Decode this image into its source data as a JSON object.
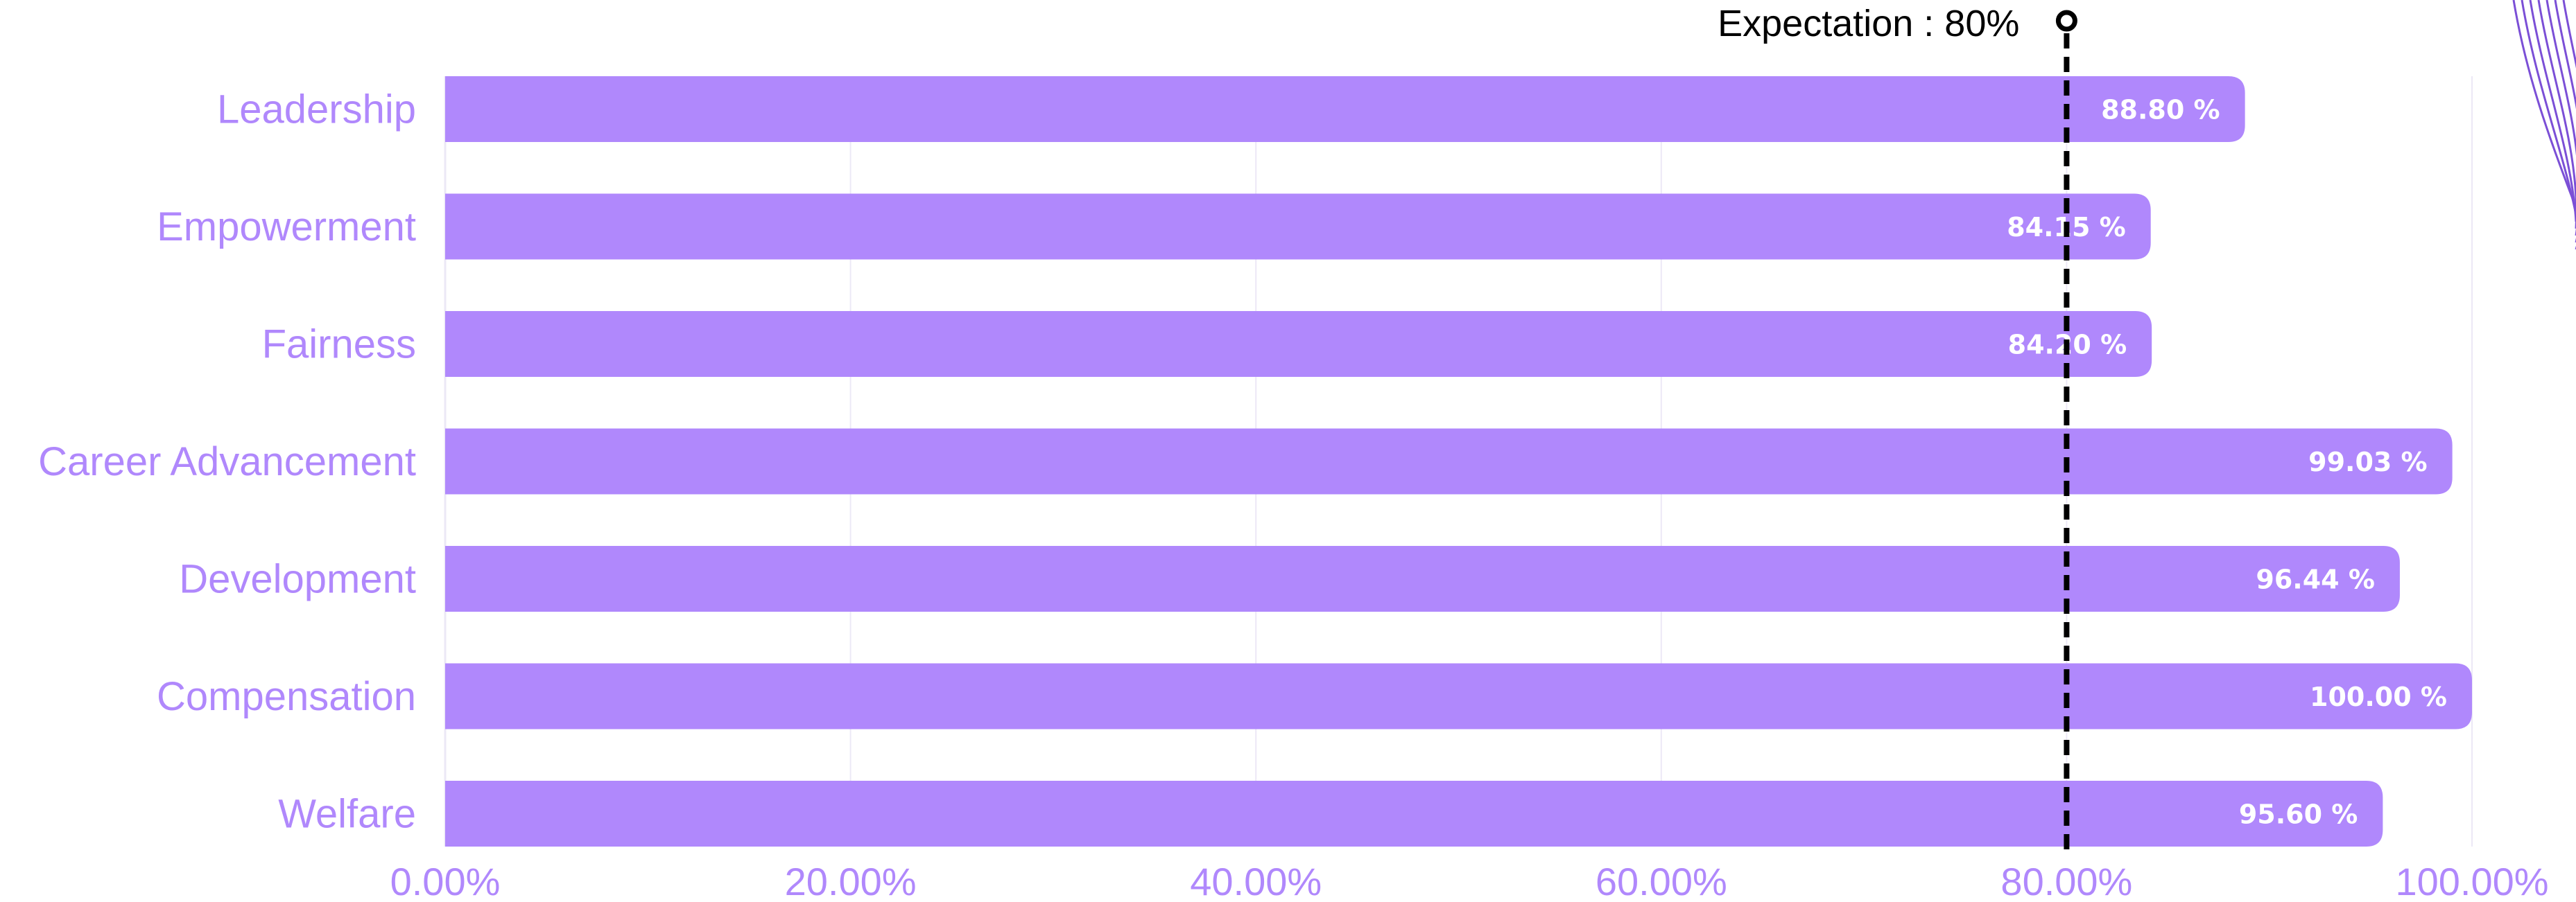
{
  "colors": {
    "bar": "#b088fc",
    "label": "#b088fc",
    "data_label": "#ffffff",
    "grid": "#ece8f6",
    "reference_line": "#000000",
    "decoration": "#7b4fd6"
  },
  "chart_data": {
    "type": "bar",
    "orientation": "horizontal",
    "categories": [
      "Leadership",
      "Empowerment",
      "Fairness",
      "Career Advancement",
      "Development",
      "Compensation",
      "Welfare"
    ],
    "values": [
      88.8,
      84.15,
      84.2,
      99.03,
      96.44,
      100.0,
      95.6
    ],
    "data_labels": [
      "88.80 %",
      "84.15 %",
      "84.20 %",
      "99.03 %",
      "96.44 %",
      "100.00 %",
      "95.60 %"
    ],
    "x_ticks": [
      0,
      20,
      40,
      60,
      80,
      100
    ],
    "x_tick_labels": [
      "0.00%",
      "20.00%",
      "40.00%",
      "60.00%",
      "80.00%",
      "100.00%"
    ],
    "xlim": [
      0,
      100
    ],
    "grid": true,
    "reference_line": {
      "value": 80,
      "label": "Expectation : 80%"
    }
  }
}
